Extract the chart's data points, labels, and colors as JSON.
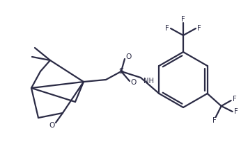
{
  "bg_color": "#ffffff",
  "line_color": "#2b2b45",
  "line_width": 1.6,
  "font_size": 7.2,
  "figsize": [
    3.56,
    2.15
  ],
  "dpi": 100,
  "xlim": [
    0,
    356
  ],
  "ylim": [
    0,
    215
  ]
}
